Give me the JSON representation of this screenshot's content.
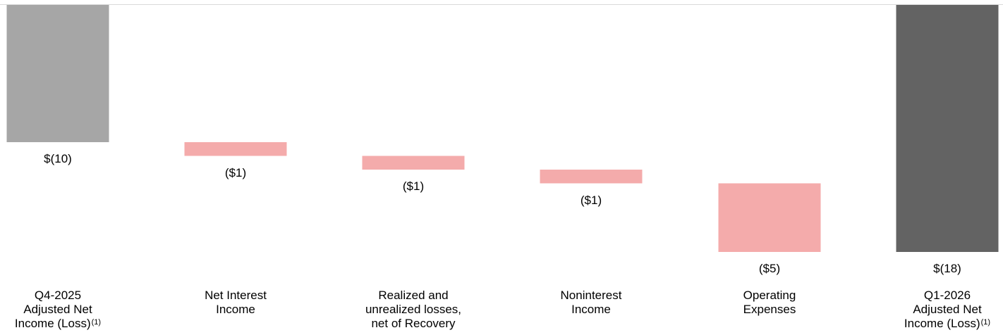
{
  "chart_data": {
    "type": "bar",
    "subtype": "waterfall",
    "categories": [
      "Q4-2025 Adjusted Net Income (Loss)",
      "Net Interest Income",
      "Realized and unrealized losses, net of Recovery",
      "Noninterest Income",
      "Operating Expenses",
      "Q1-2026 Adjusted Net Income (Loss)"
    ],
    "category_lines": [
      [
        "Q4-2025",
        "Adjusted Net",
        "Income (Loss)"
      ],
      [
        "Net Interest",
        "Income"
      ],
      [
        "Realized and",
        "unrealized losses,",
        "net of Recovery"
      ],
      [
        "Noninterest",
        "Income"
      ],
      [
        "Operating",
        "Expenses"
      ],
      [
        "Q1-2026",
        "Adjusted Net",
        "Income (Loss)"
      ]
    ],
    "footnote_marks": [
      "(1)",
      "",
      "",
      "",
      "",
      "(1)"
    ],
    "values": [
      -10,
      -1,
      -1,
      -1,
      -5,
      -18
    ],
    "value_labels": [
      "$(10)",
      "($1)",
      "($1)",
      "($1)",
      "($5)",
      "$(18)"
    ],
    "kinds": [
      "total",
      "delta",
      "delta",
      "delta",
      "delta",
      "total"
    ],
    "colors": {
      "start_total": "#a6a6a6",
      "delta": "#f4abab",
      "end_total": "#636363",
      "rule": "#d9d9d9"
    },
    "ylim": [
      -18,
      0
    ],
    "grid": false,
    "legend": "none"
  }
}
